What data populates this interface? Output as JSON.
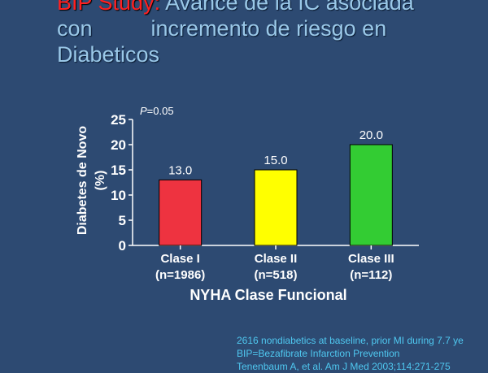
{
  "title": {
    "highlight": "BIP Study:",
    "line1_rest": "Avance de la IC asociada",
    "line2_a": "con",
    "line2_b": "incremento de riesgo en",
    "line3": "Diabeticos"
  },
  "colors": {
    "background": "#2d4a72",
    "title_highlight": "#ff2020",
    "title_text": "#9ac8e8",
    "axis_text": "#ffffff",
    "footnote_text": "#4fc8f0"
  },
  "chart_data": {
    "type": "bar",
    "categories": [
      {
        "label": "Clase I",
        "sublabel": "(n=1986)"
      },
      {
        "label": "Clase II",
        "sublabel": "(n=518)"
      },
      {
        "label": "Clase III",
        "sublabel": "(n=112)"
      }
    ],
    "values": [
      13.0,
      15.0,
      20.0
    ],
    "value_labels": [
      "13.0",
      "15.0",
      "20.0"
    ],
    "bar_colors": [
      "#ee3340",
      "#ffff00",
      "#33cc33"
    ],
    "ylabel_line1": "Diabetes de Novo",
    "ylabel_line2": "(%)",
    "xlabel": "NYHA  Clase Funcional",
    "ylim": [
      0,
      25
    ],
    "yticks": [
      0,
      5,
      10,
      15,
      20,
      25
    ],
    "annotation": {
      "italic_part": "P",
      "rest": "=0.05"
    },
    "grid": false,
    "legend": "none"
  },
  "footnotes": [
    "2616 nondiabetics at baseline, prior MI during 7.7 ye",
    "BIP=Bezafibrate Infarction Prevention",
    "Tenenbaum A, et al. Am J Med 2003;114:271-275"
  ]
}
